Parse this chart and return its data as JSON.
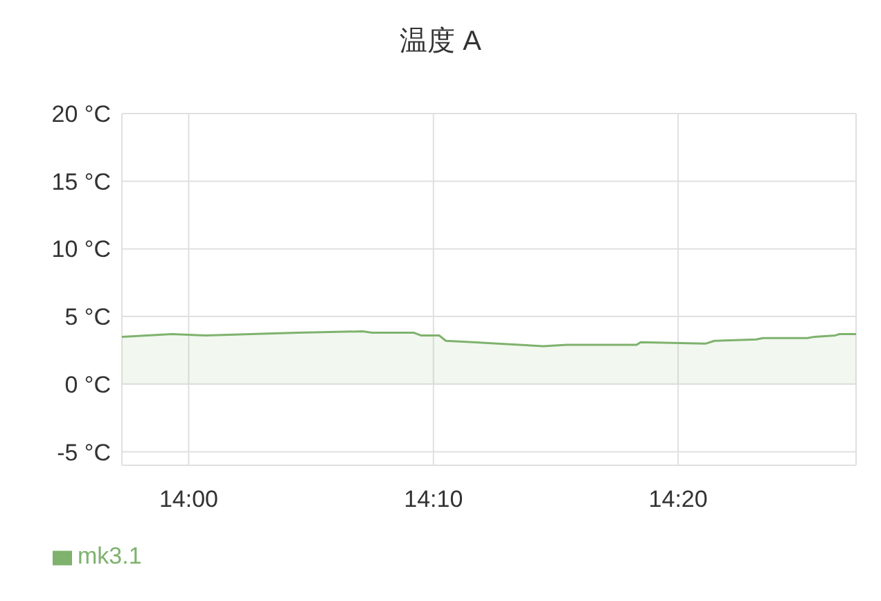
{
  "chart_data": {
    "type": "area",
    "title": "温度 A",
    "x": [
      13.9545,
      13.9886,
      14.0114,
      14.0739,
      14.1184,
      14.125,
      14.1534,
      14.1581,
      14.1705,
      14.1752,
      14.1941,
      14.2102,
      14.2415,
      14.2576,
      14.305,
      14.3078,
      14.3523,
      14.358,
      14.3864,
      14.3911,
      14.4214,
      14.4261,
      14.4403,
      14.4432,
      14.4545
    ],
    "series": [
      {
        "name": "mk3.1",
        "color": "#7eb26d",
        "values": [
          3.5,
          3.7,
          3.6,
          3.8,
          3.9,
          3.8,
          3.8,
          3.6,
          3.6,
          3.2,
          3.1,
          3.0,
          2.8,
          2.9,
          2.9,
          3.1,
          3.0,
          3.2,
          3.3,
          3.4,
          3.4,
          3.5,
          3.6,
          3.7,
          3.7
        ]
      }
    ],
    "xlim": [
      13.9545,
      14.4545
    ],
    "xticks": [
      {
        "value": 14,
        "label": "14:00"
      },
      {
        "value": 14.16667,
        "label": "14:10"
      },
      {
        "value": 14.33333,
        "label": "14:20"
      }
    ],
    "ylim": [
      -6,
      20
    ],
    "yticks": [
      {
        "value": -5,
        "label": "-5 °C"
      },
      {
        "value": 0,
        "label": "0 °C"
      },
      {
        "value": 5,
        "label": "5 °C"
      },
      {
        "value": 10,
        "label": "10 °C"
      },
      {
        "value": 15,
        "label": "15 °C"
      },
      {
        "value": 20,
        "label": "20 °C"
      }
    ],
    "grid": true,
    "legend": "bottom left"
  }
}
